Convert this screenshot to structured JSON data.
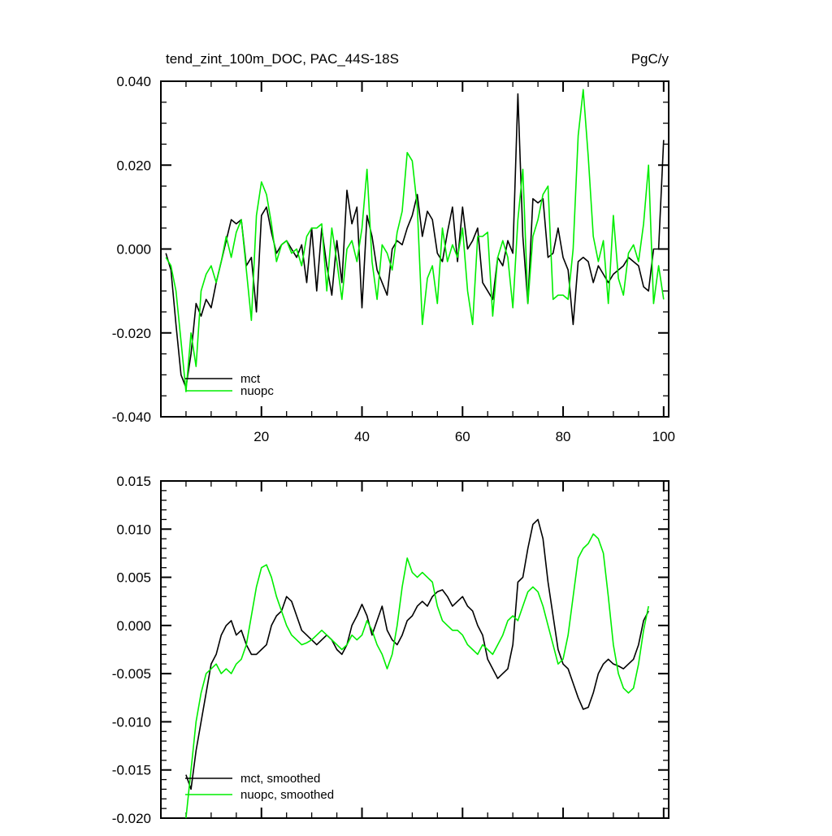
{
  "figure": {
    "background": "#ffffff",
    "axis_color": "#000000"
  },
  "chart_data": [
    {
      "type": "line",
      "title": "tend_zint_100m_DOC, PAC_44S-18S",
      "units_label": "PgC/y",
      "xlabel": "",
      "ylabel": "",
      "xlim": [
        0,
        101
      ],
      "ylim": [
        -0.04,
        0.04
      ],
      "grid": false,
      "legend_position": "lower-left",
      "x_ticks": {
        "major_values": [
          20,
          40,
          60,
          80,
          100
        ],
        "major_labels": [
          "20",
          "40",
          "60",
          "80",
          "100"
        ],
        "minor_step": 5,
        "show_labels": true
      },
      "y_ticks": {
        "major_values": [
          -0.04,
          -0.02,
          0,
          0.02,
          0.04
        ],
        "major_labels": [
          "-0.040",
          "-0.020",
          "0.000",
          "0.020",
          "0.040"
        ],
        "minor_step": 0.005
      },
      "series": [
        {
          "name": "mct",
          "color": "#000000",
          "x_start": 1,
          "x_step": 1,
          "values": [
            -0.001,
            -0.005,
            -0.018,
            -0.03,
            -0.033,
            -0.025,
            -0.013,
            -0.016,
            -0.012,
            -0.014,
            -0.008,
            -0.003,
            0.002,
            0.007,
            0.006,
            0.007,
            -0.004,
            -0.002,
            -0.015,
            0.008,
            0.01,
            0.004,
            -0.001,
            0.001,
            0.002,
            0.0,
            -0.002,
            0.001,
            -0.008,
            0.005,
            -0.01,
            0.005,
            -0.004,
            -0.011,
            0.002,
            -0.008,
            0.014,
            0.006,
            0.01,
            -0.014,
            0.008,
            0.003,
            -0.005,
            -0.008,
            -0.011,
            0.0,
            0.002,
            0.001,
            0.005,
            0.008,
            0.013,
            0.003,
            0.009,
            0.007,
            -0.001,
            -0.003,
            0.004,
            0.01,
            -0.003,
            0.01,
            0.0,
            0.002,
            0.005,
            -0.008,
            -0.01,
            -0.012,
            -0.002,
            -0.004,
            0.002,
            -0.001,
            0.037,
            0.003,
            -0.013,
            0.012,
            0.011,
            0.012,
            -0.002,
            -0.001,
            0.005,
            -0.002,
            -0.005,
            -0.018,
            -0.003,
            -0.002,
            -0.003,
            -0.008,
            -0.004,
            -0.006,
            -0.008,
            -0.006,
            -0.005,
            -0.004,
            -0.002,
            -0.003,
            -0.004,
            -0.009,
            -0.01,
            0.0,
            0.0,
            0.026
          ]
        },
        {
          "name": "nuopc",
          "color": "#00ee00",
          "x_start": 1,
          "x_step": 1,
          "values": [
            -0.002,
            -0.004,
            -0.01,
            -0.022,
            -0.034,
            -0.02,
            -0.028,
            -0.01,
            -0.006,
            -0.004,
            -0.008,
            -0.003,
            0.003,
            -0.002,
            0.004,
            0.007,
            -0.005,
            -0.017,
            0.008,
            0.016,
            0.013,
            0.006,
            -0.003,
            0.001,
            0.002,
            -0.001,
            0.0,
            -0.004,
            0.003,
            0.005,
            0.005,
            0.006,
            -0.01,
            0.005,
            -0.003,
            -0.012,
            0.0,
            0.002,
            -0.003,
            0.005,
            0.019,
            -0.003,
            -0.012,
            0.001,
            -0.001,
            -0.005,
            0.004,
            0.009,
            0.023,
            0.021,
            0.01,
            -0.018,
            -0.007,
            -0.004,
            -0.013,
            0.005,
            -0.003,
            0.001,
            -0.002,
            0.005,
            -0.01,
            -0.018,
            0.003,
            0.003,
            0.004,
            -0.016,
            -0.002,
            0.002,
            -0.002,
            -0.014,
            0.007,
            0.019,
            -0.013,
            0.003,
            0.007,
            0.013,
            0.015,
            -0.012,
            -0.011,
            -0.011,
            -0.012,
            0.0,
            0.027,
            0.038,
            0.022,
            0.003,
            -0.003,
            0.002,
            -0.013,
            0.008,
            -0.007,
            -0.011,
            -0.001,
            0.001,
            -0.003,
            0.006,
            0.02,
            -0.013,
            -0.004,
            -0.012
          ]
        }
      ]
    },
    {
      "type": "line",
      "title": "",
      "units_label": "",
      "xlabel": "",
      "ylabel": "",
      "xlim": [
        0,
        101
      ],
      "ylim": [
        -0.02,
        0.015
      ],
      "grid": false,
      "legend_position": "lower-left",
      "x_ticks": {
        "major_values": [
          20,
          40,
          60,
          80,
          100
        ],
        "major_labels": [
          "20",
          "40",
          "60",
          "80",
          "100"
        ],
        "minor_step": 5,
        "show_labels": true
      },
      "y_ticks": {
        "major_values": [
          -0.02,
          -0.015,
          -0.01,
          -0.005,
          0,
          0.005,
          0.01,
          0.015
        ],
        "major_labels": [
          "-0.020",
          "-0.015",
          "-0.010",
          "-0.005",
          "0.000",
          "0.005",
          "0.010",
          "0.015"
        ],
        "minor_step": 0.001
      },
      "series": [
        {
          "name": "mct, smoothed",
          "color": "#000000",
          "x_start": 5,
          "x_step": 1,
          "values": [
            -0.0155,
            -0.017,
            -0.013,
            -0.01,
            -0.007,
            -0.004,
            -0.003,
            -0.001,
            0.0,
            0.0005,
            -0.001,
            -0.0005,
            -0.002,
            -0.003,
            -0.003,
            -0.0025,
            -0.002,
            0.0,
            0.001,
            0.0015,
            0.003,
            0.0025,
            0.001,
            -0.0005,
            -0.001,
            -0.0015,
            -0.002,
            -0.0015,
            -0.001,
            -0.0015,
            -0.0025,
            -0.003,
            -0.002,
            0.0,
            0.001,
            0.0022,
            0.001,
            -0.001,
            0.0005,
            0.002,
            -0.0005,
            -0.0015,
            -0.002,
            -0.001,
            0.0005,
            0.001,
            0.002,
            0.0025,
            0.002,
            0.003,
            0.0035,
            0.0037,
            0.003,
            0.002,
            0.0025,
            0.003,
            0.002,
            0.0015,
            0.0,
            -0.001,
            -0.0035,
            -0.0045,
            -0.0055,
            -0.005,
            -0.0045,
            -0.002,
            0.0045,
            0.005,
            0.008,
            0.0105,
            0.011,
            0.009,
            0.0045,
            0.001,
            -0.0025,
            -0.004,
            -0.0045,
            -0.006,
            -0.0075,
            -0.0087,
            -0.0085,
            -0.007,
            -0.005,
            -0.004,
            -0.0035,
            -0.004,
            -0.0042,
            -0.0045,
            -0.004,
            -0.0035,
            -0.002,
            0.0005,
            0.0015
          ]
        },
        {
          "name": "nuopc, smoothed",
          "color": "#00ee00",
          "x_start": 5,
          "x_step": 1,
          "values": [
            -0.02,
            -0.015,
            -0.01,
            -0.007,
            -0.005,
            -0.0045,
            -0.004,
            -0.005,
            -0.0045,
            -0.005,
            -0.004,
            -0.0035,
            -0.002,
            0.001,
            0.004,
            0.006,
            0.0063,
            0.005,
            0.003,
            0.0015,
            0.0,
            -0.001,
            -0.0015,
            -0.002,
            -0.0018,
            -0.0015,
            -0.001,
            -0.0005,
            -0.001,
            -0.0015,
            -0.002,
            -0.0025,
            -0.002,
            -0.001,
            -0.0015,
            -0.001,
            0.0005,
            -0.0005,
            -0.002,
            -0.003,
            -0.0045,
            -0.003,
            0.0,
            0.004,
            0.007,
            0.0055,
            0.005,
            0.0055,
            0.005,
            0.0045,
            0.002,
            0.0005,
            0.0,
            -0.0005,
            -0.0005,
            -0.001,
            -0.002,
            -0.0025,
            -0.003,
            -0.002,
            -0.0025,
            -0.003,
            -0.002,
            -0.001,
            0.0005,
            0.001,
            0.0005,
            0.002,
            0.0035,
            0.004,
            0.0035,
            0.002,
            0.0,
            -0.002,
            -0.004,
            -0.0035,
            -0.001,
            0.003,
            0.007,
            0.008,
            0.0085,
            0.0095,
            0.009,
            0.0075,
            0.003,
            -0.002,
            -0.005,
            -0.0065,
            -0.007,
            -0.0065,
            -0.004,
            -0.0005,
            0.002
          ]
        }
      ]
    }
  ]
}
